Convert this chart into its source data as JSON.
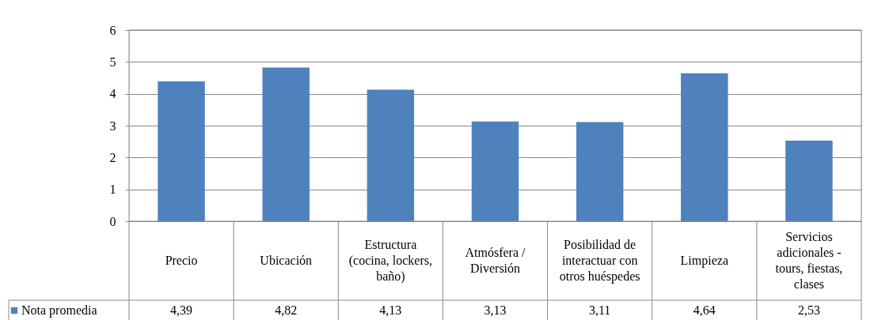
{
  "chart_data": {
    "type": "bar",
    "categories": [
      "Precio",
      "Ubicación",
      "Estructura (cocina, lockers, baño)",
      "Atmósfera / Diversión",
      "Posibilidad de interactuar con otros huéspedes",
      "Limpieza",
      "Servicios adicionales - tours, fiestas, clases"
    ],
    "series": [
      {
        "name": "Nota promedia",
        "color": "#4f81bd",
        "values": [
          4.39,
          4.82,
          4.13,
          3.13,
          3.11,
          4.64,
          2.53
        ],
        "value_labels": [
          "4,39",
          "4,82",
          "4,13",
          "3,13",
          "3,11",
          "4,64",
          "2,53"
        ]
      }
    ],
    "ylim": [
      0,
      6
    ],
    "yticks": [
      0,
      1,
      2,
      3,
      4,
      5,
      6
    ],
    "grid": "y",
    "legend": "bottom"
  }
}
